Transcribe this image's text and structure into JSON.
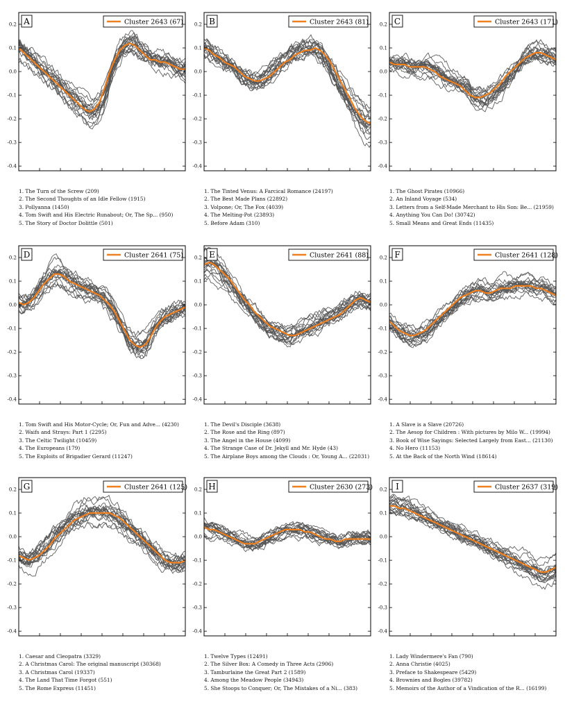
{
  "chart_data": [
    {
      "type": "line",
      "panel": "A",
      "legend": "Cluster 2643 (67)",
      "ylim": [
        -0.42,
        0.25
      ],
      "yticks": [
        "0.2",
        "0.1",
        "0.0",
        "-0.1",
        "-0.2",
        "-0.3",
        "-0.4"
      ],
      "mean": [
        0.1,
        0.08,
        0.06,
        0.04,
        0.02,
        0.0,
        -0.02,
        -0.04,
        -0.06,
        -0.08,
        -0.1,
        -0.12,
        -0.14,
        -0.16,
        -0.17,
        -0.16,
        -0.13,
        -0.07,
        0.0,
        0.05,
        0.09,
        0.11,
        0.12,
        0.11,
        0.09,
        0.07,
        0.05,
        0.05,
        0.04,
        0.04,
        0.03,
        0.02,
        0.01,
        0.01
      ],
      "spread": 0.05,
      "curves": 18,
      "titles": [
        "1. The Turn of the Screw (209)",
        "2. The Second Thoughts of an Idle Fellow (1915)",
        "3. Pollyanna (1450)",
        "4. Tom Swift and His Electric Runabout; Or, The Sp... (950)",
        "5. The Story of Doctor Dolittle (501)"
      ]
    },
    {
      "type": "line",
      "panel": "B",
      "legend": "Cluster 2643 (81)",
      "ylim": [
        -0.42,
        0.25
      ],
      "yticks": [
        "0.2",
        "0.1",
        "0.0",
        "-0.1",
        "-0.2",
        "-0.3",
        "-0.4"
      ],
      "mean": [
        0.1,
        0.09,
        0.07,
        0.06,
        0.04,
        0.03,
        0.02,
        0.0,
        -0.02,
        -0.03,
        -0.04,
        -0.04,
        -0.03,
        -0.02,
        0.0,
        0.02,
        0.04,
        0.05,
        0.07,
        0.08,
        0.09,
        0.09,
        0.1,
        0.09,
        0.07,
        0.04,
        0.0,
        -0.04,
        -0.08,
        -0.12,
        -0.16,
        -0.19,
        -0.21,
        -0.22
      ],
      "spread": 0.05,
      "curves": 18,
      "titles": [
        "1. The Tinted Venus: A Farcical Romance (24197)",
        "2. The Best Made Plans (22892)",
        "3. Volpone; Or, The Fox (4039)",
        "4. The Melting-Pot (23893)",
        "5. Before Adam (310)"
      ]
    },
    {
      "type": "line",
      "panel": "C",
      "legend": "Cluster 2643 (171)",
      "ylim": [
        -0.42,
        0.25
      ],
      "yticks": [
        "0.2",
        "0.1",
        "0.0",
        "-0.1",
        "-0.2",
        "-0.3",
        "-0.4"
      ],
      "mean": [
        0.04,
        0.03,
        0.03,
        0.03,
        0.02,
        0.02,
        0.02,
        0.02,
        0.01,
        0.0,
        -0.02,
        -0.03,
        -0.04,
        -0.05,
        -0.06,
        -0.08,
        -0.1,
        -0.11,
        -0.11,
        -0.1,
        -0.09,
        -0.07,
        -0.05,
        -0.02,
        0.0,
        0.02,
        0.04,
        0.06,
        0.07,
        0.08,
        0.08,
        0.07,
        0.06,
        0.05
      ],
      "spread": 0.045,
      "curves": 18,
      "titles": [
        "1. The Ghost Pirates (10966)",
        "2. An Inland Voyage (534)",
        "3. Letters from a Self-Made Merchant to His Son: Be... (21959)",
        "4. Anything You Can Do! (30742)",
        "5. Small Means and Great Ends (11435)"
      ]
    },
    {
      "type": "line",
      "panel": "D",
      "legend": "Cluster 2641 (75)",
      "ylim": [
        -0.42,
        0.25
      ],
      "yticks": [
        "0.2",
        "0.1",
        "0.0",
        "-0.1",
        "-0.2",
        "-0.3",
        "-0.4"
      ],
      "mean": [
        0.01,
        0.0,
        0.01,
        0.03,
        0.06,
        0.09,
        0.11,
        0.13,
        0.13,
        0.12,
        0.1,
        0.09,
        0.08,
        0.07,
        0.06,
        0.05,
        0.04,
        0.02,
        0.0,
        -0.03,
        -0.07,
        -0.11,
        -0.15,
        -0.17,
        -0.18,
        -0.17,
        -0.14,
        -0.1,
        -0.07,
        -0.05,
        -0.04,
        -0.03,
        -0.02,
        -0.01
      ],
      "spread": 0.05,
      "curves": 18,
      "titles": [
        "1. Tom Swift and His Motor-Cycle; Or, Fun and Adve... (4230)",
        "2. Waifs and Strays: Part 1 (2295)",
        "3. The Celtic Twilight (10459)",
        "4. The Europeans (179)",
        "5. The Exploits of Brigadier Gerard (11247)"
      ]
    },
    {
      "type": "line",
      "panel": "E",
      "legend": "Cluster 2641 (88)",
      "ylim": [
        -0.42,
        0.25
      ],
      "yticks": [
        "0.2",
        "0.1",
        "0.0",
        "-0.1",
        "-0.2",
        "-0.3",
        "-0.4"
      ],
      "mean": [
        0.17,
        0.18,
        0.17,
        0.15,
        0.13,
        0.11,
        0.08,
        0.05,
        0.02,
        0.0,
        -0.03,
        -0.05,
        -0.07,
        -0.09,
        -0.1,
        -0.11,
        -0.12,
        -0.13,
        -0.13,
        -0.12,
        -0.11,
        -0.1,
        -0.09,
        -0.08,
        -0.07,
        -0.06,
        -0.05,
        -0.04,
        -0.02,
        0.0,
        0.02,
        0.03,
        0.02,
        0.01
      ],
      "spread": 0.045,
      "curves": 18,
      "titles": [
        "1. The Devil's Disciple (3638)",
        "2. The Rose and the Ring (897)",
        "3. The Angel in the House (4099)",
        "4. The Strange Case of Dr. Jekyll and Mr. Hyde (43)",
        "5. The Airplane Boys among the Clouds : Or, Young A... (22031)"
      ]
    },
    {
      "type": "line",
      "panel": "F",
      "legend": "Cluster 2641 (128)",
      "ylim": [
        -0.42,
        0.25
      ],
      "yticks": [
        "0.2",
        "0.1",
        "0.0",
        "-0.1",
        "-0.2",
        "-0.3",
        "-0.4"
      ],
      "mean": [
        -0.07,
        -0.09,
        -0.11,
        -0.12,
        -0.13,
        -0.13,
        -0.12,
        -0.11,
        -0.09,
        -0.07,
        -0.05,
        -0.03,
        -0.01,
        0.01,
        0.03,
        0.04,
        0.05,
        0.06,
        0.06,
        0.05,
        0.05,
        0.06,
        0.07,
        0.07,
        0.07,
        0.08,
        0.08,
        0.08,
        0.08,
        0.07,
        0.07,
        0.06,
        0.05,
        0.04
      ],
      "spread": 0.04,
      "curves": 18,
      "titles": [
        "1. A Slave is a Slave (20726)",
        "2. The Aesop for Children : With pictures by Milo W... (19994)",
        "3. Book of Wise Sayings: Selected Largely from East... (21130)",
        "4. No Hero (11153)",
        "5. At the Back of the North Wind (18614)"
      ]
    },
    {
      "type": "line",
      "panel": "G",
      "legend": "Cluster 2641 (125)",
      "ylim": [
        -0.42,
        0.25
      ],
      "yticks": [
        "0.2",
        "0.1",
        "0.0",
        "-0.1",
        "-0.2",
        "-0.3",
        "-0.4"
      ],
      "mean": [
        -0.08,
        -0.09,
        -0.1,
        -0.09,
        -0.08,
        -0.06,
        -0.04,
        -0.01,
        0.01,
        0.03,
        0.05,
        0.07,
        0.08,
        0.09,
        0.1,
        0.1,
        0.1,
        0.1,
        0.1,
        0.09,
        0.08,
        0.06,
        0.04,
        0.02,
        0.0,
        -0.02,
        -0.04,
        -0.06,
        -0.08,
        -0.1,
        -0.11,
        -0.11,
        -0.11,
        -0.1
      ],
      "spread": 0.05,
      "curves": 18,
      "titles": [
        "1. Caesar and Cleopatra (3329)",
        "2. A Christmas Carol: The original manuscript (30368)",
        "3. A Christmas Carol (19337)",
        "4. The Land That Time Forgot (551)",
        "5. The Rome Express (11451)"
      ]
    },
    {
      "type": "line",
      "panel": "H",
      "legend": "Cluster 2630 (273)",
      "ylim": [
        -0.42,
        0.25
      ],
      "yticks": [
        "0.2",
        "0.1",
        "0.0",
        "-0.1",
        "-0.2",
        "-0.3",
        "-0.4"
      ],
      "mean": [
        0.04,
        0.03,
        0.03,
        0.02,
        0.01,
        0.0,
        -0.01,
        -0.02,
        -0.03,
        -0.03,
        -0.03,
        -0.02,
        -0.01,
        0.0,
        0.01,
        0.02,
        0.03,
        0.03,
        0.03,
        0.03,
        0.02,
        0.02,
        0.01,
        0.0,
        -0.01,
        -0.01,
        -0.02,
        -0.02,
        -0.01,
        -0.01,
        -0.01,
        -0.01,
        -0.01,
        -0.01
      ],
      "spread": 0.035,
      "curves": 18,
      "titles": [
        "1. Twelve Types (12491)",
        "2. The Silver Box: A Comedy in Three Acts (2906)",
        "3. Tamburlaine the Great Part 2 (1589)",
        "4. Among the Meadow People (34943)",
        "5. She Stoops to Conquer; Or, The Mistakes of a Ni... (383)"
      ]
    },
    {
      "type": "line",
      "panel": "I",
      "legend": "Cluster 2637 (319)",
      "ylim": [
        -0.42,
        0.25
      ],
      "yticks": [
        "0.2",
        "0.1",
        "0.0",
        "-0.1",
        "-0.2",
        "-0.3",
        "-0.4"
      ],
      "mean": [
        0.13,
        0.13,
        0.12,
        0.12,
        0.11,
        0.1,
        0.09,
        0.08,
        0.07,
        0.06,
        0.05,
        0.04,
        0.03,
        0.02,
        0.01,
        0.0,
        -0.01,
        -0.02,
        -0.03,
        -0.04,
        -0.05,
        -0.06,
        -0.07,
        -0.08,
        -0.09,
        -0.1,
        -0.11,
        -0.12,
        -0.13,
        -0.14,
        -0.15,
        -0.15,
        -0.14,
        -0.13
      ],
      "spread": 0.04,
      "curves": 18,
      "titles": [
        "1. Lady Windermere's Fan (790)",
        "2. Anna Christie (4025)",
        "3. Preface to Shakespeare (5429)",
        "4. Brownies and Bogles (39782)",
        "5. Memoirs of the Author of a Vindication of the R... (16199)"
      ]
    }
  ],
  "colors": {
    "mean": "#f07f1e",
    "curves": "#555555"
  }
}
